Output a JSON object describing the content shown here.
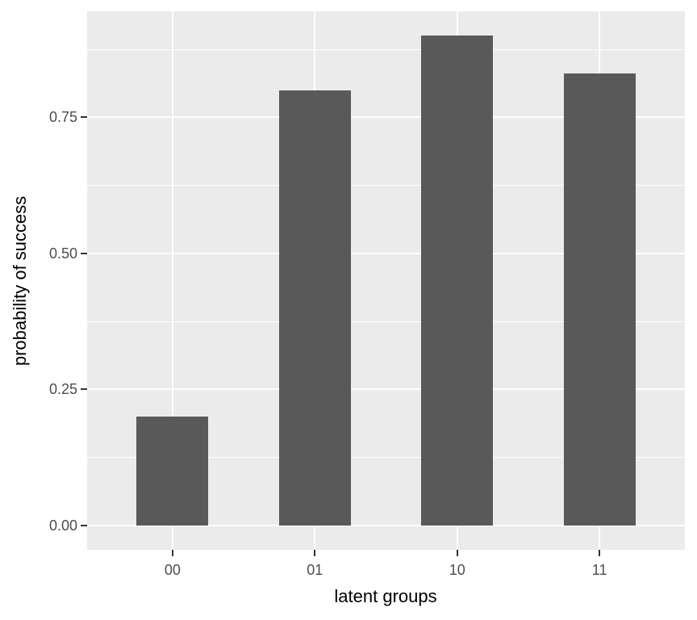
{
  "chart_data": {
    "type": "bar",
    "title": "",
    "categories": [
      "00",
      "01",
      "10",
      "11"
    ],
    "values": [
      0.2,
      0.8,
      0.9,
      0.83
    ],
    "xlabel": "latent groups",
    "ylabel": "probability of success",
    "ylim": [
      -0.045,
      0.945
    ],
    "yticks": [
      0.0,
      0.25,
      0.5,
      0.75
    ],
    "ytick_labels": [
      "0.00",
      "0.25",
      "0.50",
      "0.75"
    ],
    "minor_yticks": [
      0.125,
      0.375,
      0.625,
      0.875
    ],
    "grid": "on",
    "legend": "none",
    "style": {
      "bar_fill": "#595959",
      "panel_bg": "#EBEBEB",
      "grid_major_color": "#FFFFFF",
      "grid_minor_color": "#FFFFFF",
      "axis_text_color": "#4D4D4D",
      "axis_title_color": "#000000",
      "tick_mark_color": "#333333",
      "figure_bg": "#FFFFFF"
    }
  }
}
